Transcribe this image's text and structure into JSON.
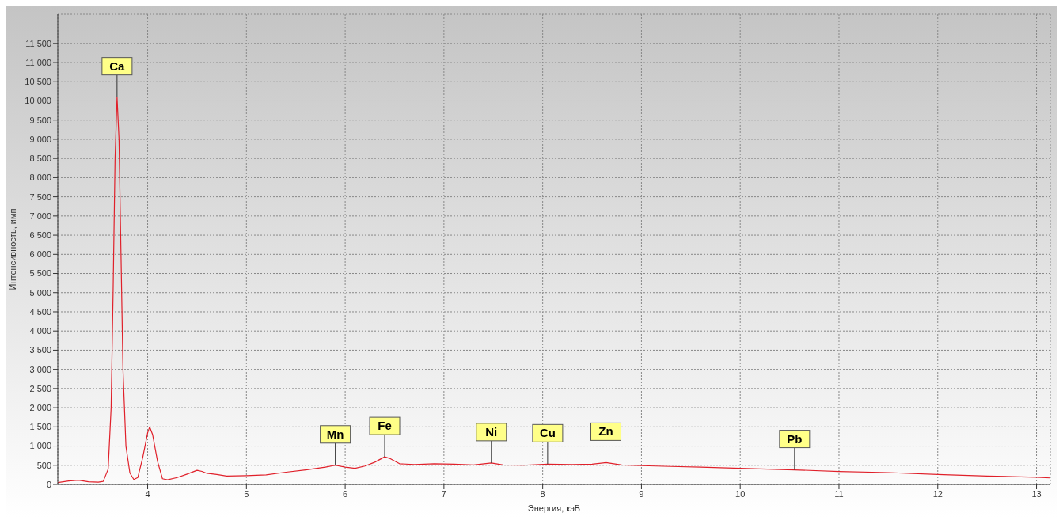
{
  "chart_data": {
    "type": "line",
    "xlabel": "Энергия, кэВ",
    "ylabel": "Интенсивность, имп",
    "xlim": [
      3.09,
      13.14
    ],
    "xticks": [
      4,
      5,
      6,
      7,
      8,
      9,
      10,
      11,
      12,
      13
    ],
    "ylim": [
      0,
      12260
    ],
    "yticks": [
      0,
      500,
      {
        "value": 1000,
        "label": "1 000"
      },
      {
        "value": 1500,
        "label": "1 500"
      },
      {
        "value": 2000,
        "label": "2 000"
      },
      {
        "value": 2500,
        "label": "2 500"
      },
      {
        "value": 3000,
        "label": "3 000"
      },
      {
        "value": 3500,
        "label": "3 500"
      },
      {
        "value": 4000,
        "label": "4 000"
      },
      {
        "value": 4500,
        "label": "4 500"
      },
      {
        "value": 5000,
        "label": "5 000"
      },
      {
        "value": 5500,
        "label": "5 500"
      },
      {
        "value": 6000,
        "label": "6 000"
      },
      {
        "value": 6500,
        "label": "6 500"
      },
      {
        "value": 7000,
        "label": "7 000"
      },
      {
        "value": 7500,
        "label": "7 500"
      },
      {
        "value": 8000,
        "label": "8 000"
      },
      {
        "value": 8500,
        "label": "8 500"
      },
      {
        "value": 9000,
        "label": "9 000"
      },
      {
        "value": 9500,
        "label": "9 500"
      },
      {
        "value": 10000,
        "label": "10 000"
      },
      {
        "value": 10500,
        "label": "10 500"
      },
      {
        "value": 11000,
        "label": "11 000"
      },
      {
        "value": 11500,
        "label": "11 500"
      }
    ],
    "grid": true,
    "marker": "none",
    "line_style": "solid",
    "series": [
      {
        "color": "#e0202a",
        "x": [
          3.09,
          3.2,
          3.3,
          3.4,
          3.5,
          3.55,
          3.6,
          3.63,
          3.65,
          3.67,
          3.69,
          3.71,
          3.73,
          3.75,
          3.78,
          3.82,
          3.86,
          3.9,
          3.95,
          4.0,
          4.02,
          4.05,
          4.1,
          4.15,
          4.2,
          4.3,
          4.4,
          4.5,
          4.55,
          4.6,
          4.7,
          4.8,
          5.0,
          5.2,
          5.4,
          5.6,
          5.8,
          5.9,
          6.0,
          6.1,
          6.2,
          6.3,
          6.4,
          6.45,
          6.55,
          6.7,
          6.9,
          7.1,
          7.3,
          7.48,
          7.6,
          7.8,
          8.05,
          8.3,
          8.5,
          8.64,
          8.8,
          9.0,
          9.3,
          9.6,
          10.0,
          10.55,
          11.0,
          11.5,
          12.0,
          12.5,
          13.0,
          13.14
        ],
        "values": [
          50,
          90,
          110,
          70,
          60,
          80,
          400,
          2000,
          5000,
          8500,
          10100,
          9000,
          6000,
          3000,
          1000,
          300,
          130,
          180,
          700,
          1350,
          1500,
          1300,
          600,
          150,
          120,
          180,
          270,
          370,
          340,
          290,
          260,
          220,
          230,
          250,
          320,
          380,
          450,
          500,
          450,
          420,
          480,
          580,
          720,
          680,
          540,
          520,
          540,
          530,
          510,
          560,
          510,
          500,
          530,
          520,
          530,
          570,
          510,
          490,
          470,
          450,
          420,
          380,
          340,
          310,
          260,
          220,
          190,
          170
        ]
      }
    ],
    "annotations": [
      {
        "text": "Ca",
        "x": 3.69,
        "y": 10100
      },
      {
        "text": "Mn",
        "x": 5.9,
        "y": 500
      },
      {
        "text": "Fe",
        "x": 6.4,
        "y": 720
      },
      {
        "text": "Ni",
        "x": 7.48,
        "y": 560
      },
      {
        "text": "Cu",
        "x": 8.05,
        "y": 530
      },
      {
        "text": "Zn",
        "x": 8.64,
        "y": 570
      },
      {
        "text": "Pb",
        "x": 10.55,
        "y": 380
      }
    ]
  }
}
